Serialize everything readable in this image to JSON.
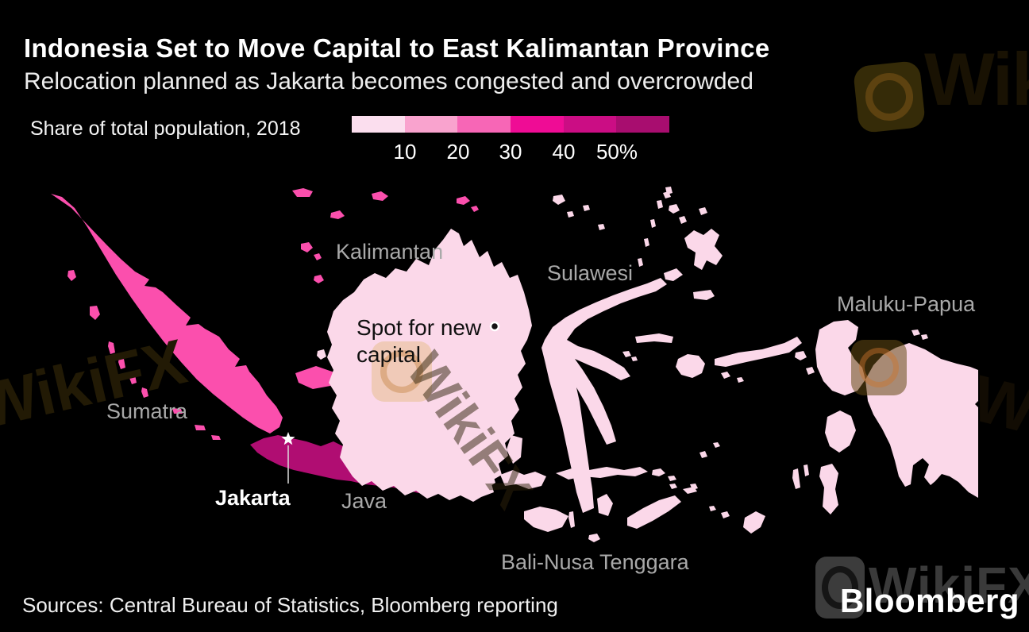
{
  "header": {
    "title": "Indonesia Set to Move Capital to East Kalimantan Province",
    "subtitle": "Relocation planned as Jakarta becomes congested and overcrowded"
  },
  "legend": {
    "label": "Share of total population, 2018",
    "tick_labels": [
      "10",
      "20",
      "30",
      "40",
      "50%"
    ],
    "bin_colors": [
      "#fbdeee",
      "#f9a3ce",
      "#f766b6",
      "#ef0c95",
      "#cb0d84",
      "#a80d6f"
    ]
  },
  "map": {
    "regions": [
      {
        "name": "Sumatra",
        "color": "#fb4fad",
        "share_bin": "20-30%"
      },
      {
        "name": "Java",
        "color": "#b00d72",
        "share_bin": "50%+"
      },
      {
        "name": "Kalimantan",
        "color": "#fbd8e9",
        "share_bin": "under 10%"
      },
      {
        "name": "Sulawesi",
        "color": "#fbd8e9",
        "share_bin": "under 10%"
      },
      {
        "name": "Bali-Nusa Tenggara",
        "color": "#fbd8e9",
        "share_bin": "under 10%"
      },
      {
        "name": "Maluku-Papua",
        "color": "#fbd8e9",
        "share_bin": "under 10%"
      }
    ],
    "labels": {
      "kalimantan": "Kalimantan",
      "sulawesi": "Sulawesi",
      "maluku_papua": "Maluku-Papua",
      "sumatra": "Sumatra",
      "java": "Java",
      "bali_nusa": "Bali-Nusa Tenggara"
    },
    "annotations": {
      "new_capital_line1": "Spot for new",
      "new_capital_line2": "capital",
      "capital_label": "Jakarta"
    }
  },
  "footer": {
    "source_line": "Sources: Central Bureau of Statistics, Bloomberg reporting",
    "brand": "Bloomberg"
  },
  "watermark": {
    "text": "WikiFX",
    "short": "Wik",
    "tiny": "Wi"
  },
  "chart_data": {
    "type": "choropleth_map",
    "title": "Indonesia Set to Move Capital to East Kalimantan Province",
    "subtitle": "Relocation planned as Jakarta becomes congested and overcrowded",
    "legend_title": "Share of total population, 2018",
    "scale": {
      "kind": "binned",
      "unit": "%",
      "tick_labels": [
        "10",
        "20",
        "30",
        "40",
        "50%"
      ],
      "colors": [
        "#fbdeee",
        "#f9a3ce",
        "#f766b6",
        "#ef0c95",
        "#cb0d84",
        "#a80d6f"
      ]
    },
    "regions": [
      {
        "name": "Sumatra",
        "value_bin": "20-30%",
        "color": "#fb4fad"
      },
      {
        "name": "Java",
        "value_bin": "50%+",
        "color": "#b00d72"
      },
      {
        "name": "Kalimantan",
        "value_bin": "under 10%",
        "color": "#fbd8e9"
      },
      {
        "name": "Sulawesi",
        "value_bin": "under 10%",
        "color": "#fbd8e9"
      },
      {
        "name": "Bali-Nusa Tenggara",
        "value_bin": "under 10%",
        "color": "#fbd8e9"
      },
      {
        "name": "Maluku-Papua",
        "value_bin": "under 10%",
        "color": "#fbd8e9"
      }
    ],
    "annotations": [
      {
        "text": "Spot for new capital",
        "marker": "open-circle",
        "location": "East Kalimantan"
      },
      {
        "text": "Jakarta",
        "marker": "star",
        "location": "northwest Java"
      }
    ],
    "sources": "Sources: Central Bureau of Statistics, Bloomberg reporting",
    "legend_position": "top"
  }
}
